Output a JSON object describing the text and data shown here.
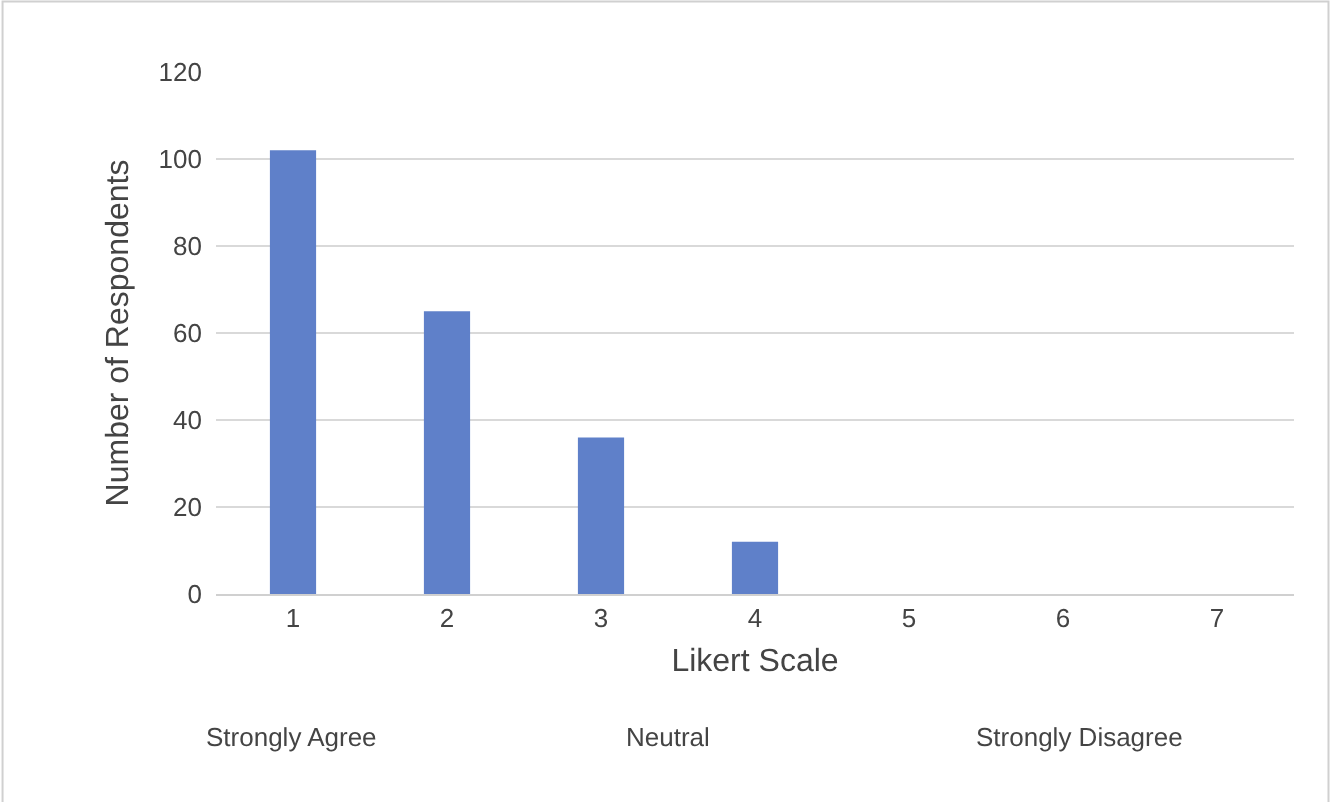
{
  "chart_data": {
    "type": "bar",
    "categories": [
      "1",
      "2",
      "3",
      "4",
      "5",
      "6",
      "7"
    ],
    "values": [
      102,
      65,
      36,
      12,
      0,
      0,
      0
    ],
    "color": "#5f80c9",
    "xlabel": "Likert Scale",
    "ylabel": "Number of Respondents",
    "ylim": [
      0,
      120
    ],
    "yticks": [
      0,
      20,
      40,
      60,
      80,
      100,
      120
    ],
    "grid": "y",
    "legend": false,
    "annotations": [
      "Strongly Agree",
      "Neutral",
      "Strongly Disagree"
    ]
  }
}
